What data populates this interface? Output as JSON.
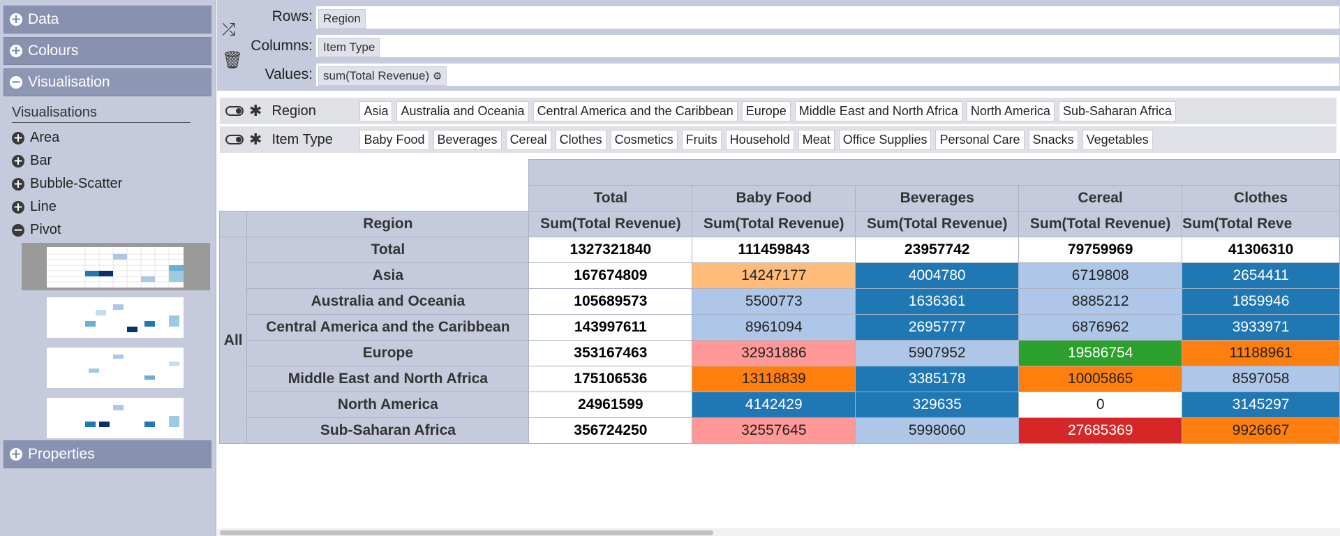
{
  "sidebar": {
    "sections": {
      "data": "Data",
      "colours": "Colours",
      "visualisation": "Visualisation",
      "properties": "Properties"
    },
    "visualisations_heading": "Visualisations",
    "items": [
      "Area",
      "Bar",
      "Bubble-Scatter",
      "Line",
      "Pivot"
    ]
  },
  "shelves": {
    "rows_label": "Rows:",
    "columns_label": "Columns:",
    "values_label": "Values:",
    "rows": "Region",
    "columns": "Item Type",
    "values": "sum(Total Revenue)"
  },
  "filters": [
    {
      "name": "Region",
      "values": [
        "Asia",
        "Australia and Oceania",
        "Central America and the Caribbean",
        "Europe",
        "Middle East and North Africa",
        "North America",
        "Sub-Saharan Africa"
      ]
    },
    {
      "name": "Item Type",
      "values": [
        "Baby Food",
        "Beverages",
        "Cereal",
        "Clothes",
        "Cosmetics",
        "Fruits",
        "Household",
        "Meat",
        "Office Supplies",
        "Personal Care",
        "Snacks",
        "Vegetables"
      ]
    }
  ],
  "pivot": {
    "row_header": "Region",
    "all_label": "All",
    "measure": "Sum(Total Revenue)",
    "columns": [
      "Total",
      "Baby Food",
      "Beverages",
      "Cereal",
      "Clothes"
    ],
    "measure_partial": "Sum(Total Reve",
    "rows": [
      {
        "label": "Total",
        "values": [
          "1327321840",
          "111459843",
          "23957742",
          "79759969",
          "41306310"
        ]
      },
      {
        "label": "Asia",
        "values": [
          "167674809",
          "14247177",
          "4004780",
          "6719808",
          "2654411"
        ]
      },
      {
        "label": "Australia and Oceania",
        "values": [
          "105689573",
          "5500773",
          "1636361",
          "8885212",
          "1859946"
        ]
      },
      {
        "label": "Central America and the Caribbean",
        "values": [
          "143997611",
          "8961094",
          "2695777",
          "6876962",
          "3933971"
        ]
      },
      {
        "label": "Europe",
        "values": [
          "353167463",
          "32931886",
          "5907952",
          "19586754",
          "11188961"
        ]
      },
      {
        "label": "Middle East and North Africa",
        "values": [
          "175106536",
          "13118839",
          "3385178",
          "10005865",
          "8597058"
        ]
      },
      {
        "label": "North America",
        "values": [
          "24961599",
          "4142429",
          "329635",
          "0",
          "3145297"
        ]
      },
      {
        "label": "Sub-Saharan Africa",
        "values": [
          "356724250",
          "32557645",
          "5998060",
          "27685369",
          "9926667"
        ]
      }
    ],
    "colors": {
      "blue": "#1f77b4",
      "light_blue": "#aec7e8",
      "light_orange": "#ffbb78",
      "pink": "#ff9896",
      "orange": "#ff7f0e",
      "green": "#2ca02c",
      "red": "#d62728"
    }
  }
}
